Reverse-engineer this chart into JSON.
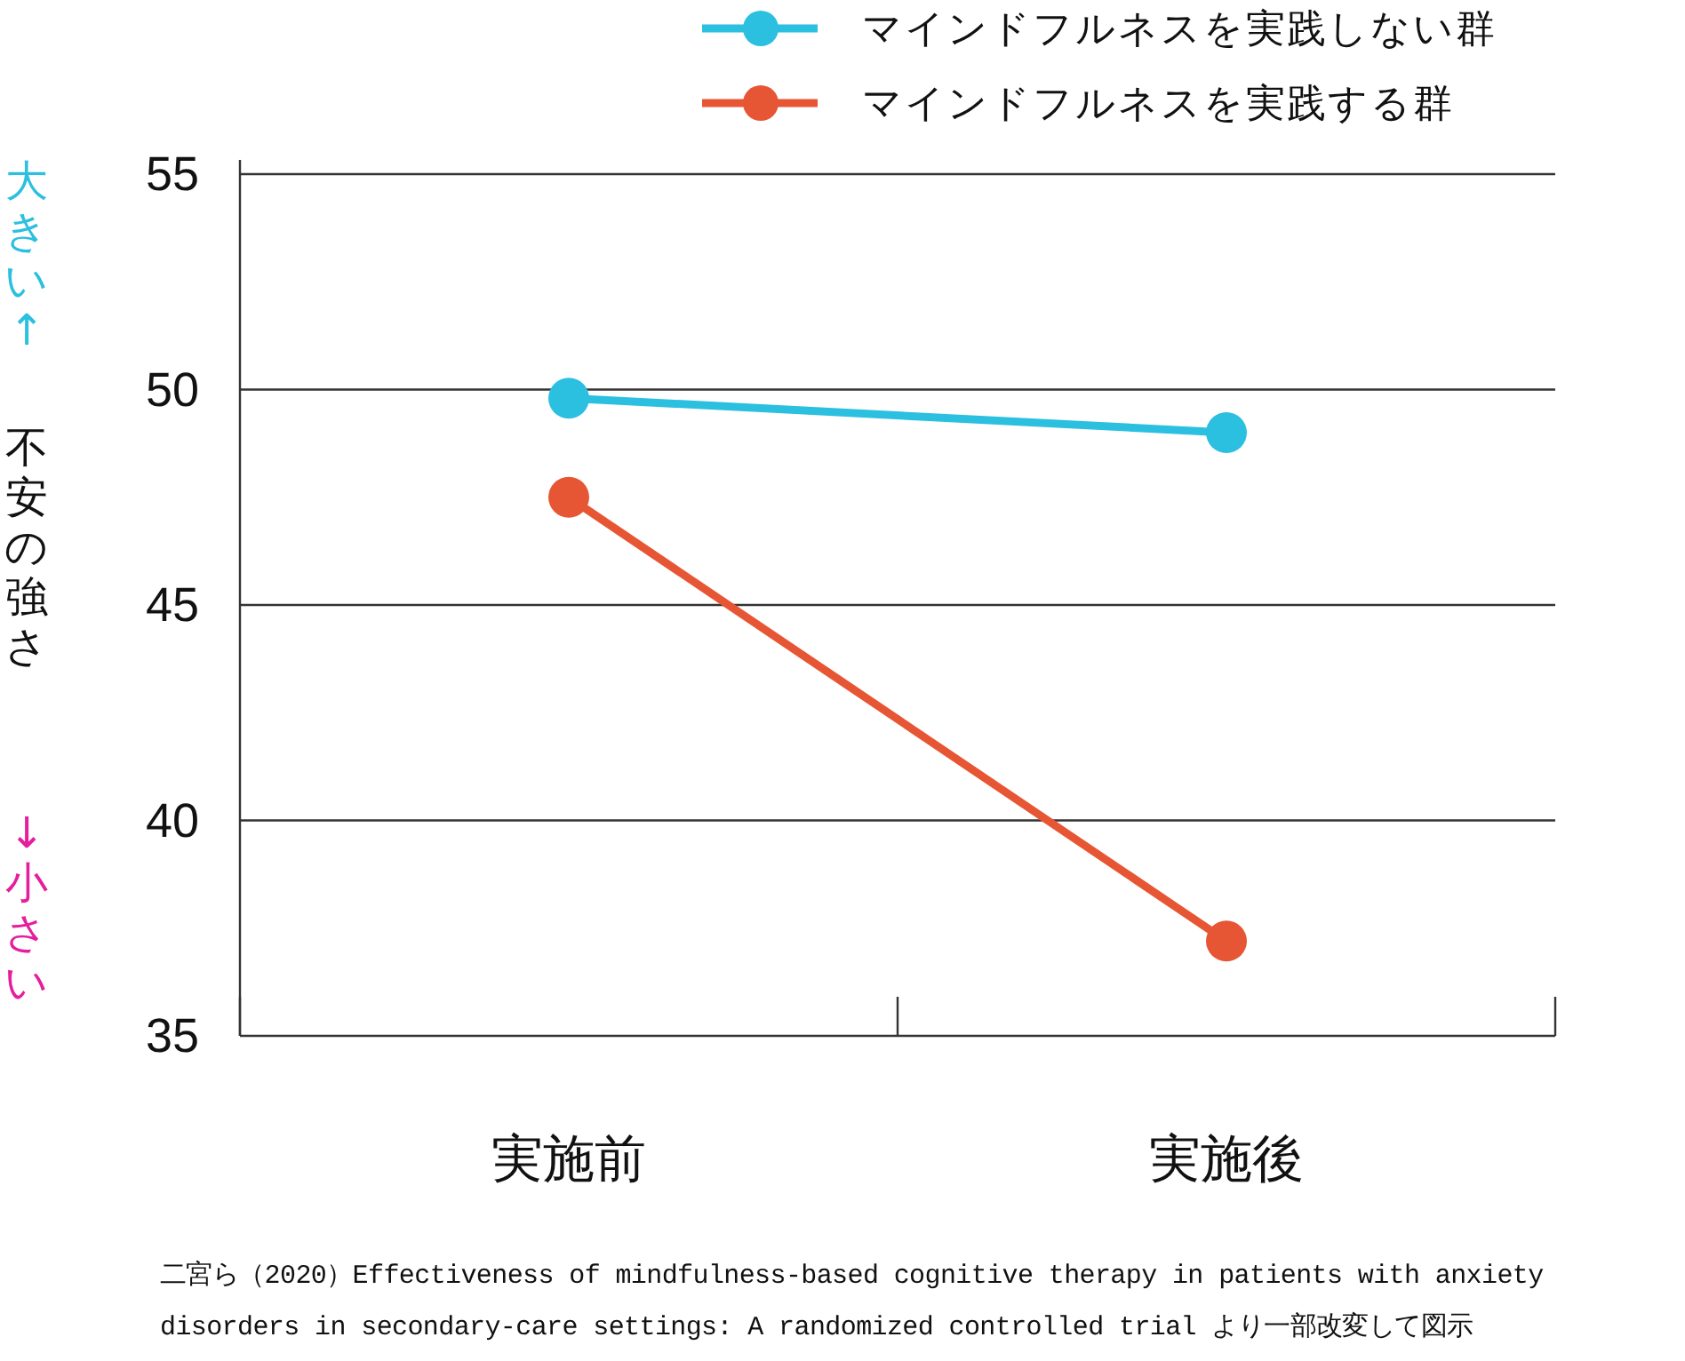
{
  "chart_data": {
    "type": "line",
    "categories": [
      "実施前",
      "実施後"
    ],
    "series": [
      {
        "name": "マインドフルネスを実践しない群",
        "color": "#2bbfe0",
        "values": [
          49.8,
          49.0
        ]
      },
      {
        "name": "マインドフルネスを実践する群",
        "color": "#e75634",
        "values": [
          47.5,
          37.2
        ]
      }
    ],
    "ylabel": "不安の強さ",
    "ylim": [
      35,
      55
    ],
    "yticks": [
      35,
      40,
      45,
      50,
      55
    ],
    "grid": "y",
    "legend": "top right",
    "marker": "circle",
    "line_style": "solid",
    "annotations": [
      "大きい↑",
      "↓小さい",
      "二宮ら（2020）Effectiveness of mindfulness-based cognitive therapy in patients with anxiety disorders in secondary-care settings: A randomized controlled trial より一部改変して図示"
    ]
  }
}
